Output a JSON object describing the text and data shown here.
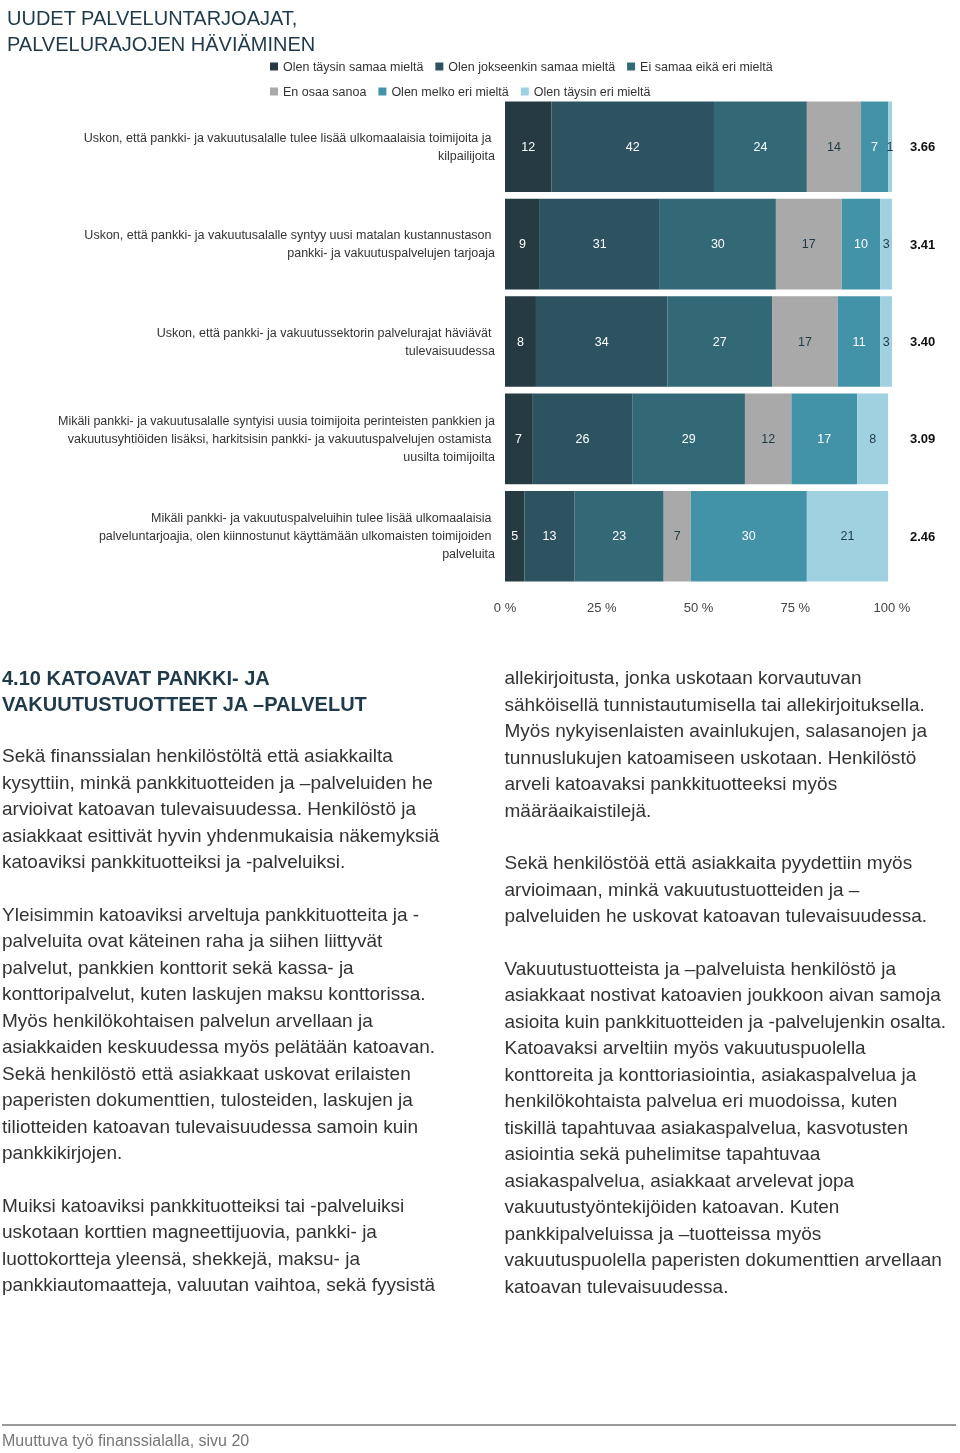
{
  "chart_data": {
    "type": "bar",
    "orientation": "horizontal",
    "stacked": true,
    "title": "UUDET PALVELUNTARJOAJAT, PALVELURAJOJEN HÄVIÄMINEN",
    "categories": [
      "Uskon, että pankki- ja vakuutusalalle tulee lisää ulkomaalaisia toimijoita ja kilpailijoita",
      "Uskon, että pankki- ja vakuutusalalle syntyy uusi matalan kustannustason pankki- ja vakuutuspalvelujen tarjoaja",
      "Uskon, että pankki- ja vakuutussektorin palvelurajat häviävät tulevaisuudessa",
      "Mikäli pankki- ja vakuutusalalle syntyisi uusia toimijoita perinteisten pankkien ja vakuutusyhtiöiden lisäksi, harkitsisin pankki- ja vakuutuspalvelujen ostamista uusilta toimijoilta",
      "Mikäli pankki- ja vakuutuspalveluihin tulee lisää ulkomaalaisia palveluntarjoajia, olen kiinnostunut käyttämään ulkomaisten toimijoiden palveluita"
    ],
    "series": [
      {
        "name": "Olen täysin samaa mieltä",
        "color": "#263a42",
        "values": [
          12,
          9,
          8,
          7,
          5
        ]
      },
      {
        "name": "Olen jokseenkin samaa mieltä",
        "color": "#2d5360",
        "values": [
          42,
          31,
          34,
          26,
          13
        ]
      },
      {
        "name": "Ei samaa eikä eri mieltä",
        "color": "#336877",
        "values": [
          24,
          30,
          27,
          29,
          23
        ]
      },
      {
        "name": "En osaa sanoa",
        "color": "#a9a9a9",
        "values": [
          14,
          17,
          17,
          12,
          7
        ]
      },
      {
        "name": "Olen melko eri mieltä",
        "color": "#4393a8",
        "values": [
          7,
          10,
          11,
          17,
          30
        ]
      },
      {
        "name": "Olen täysin eri mieltä",
        "color": "#9fd1e0",
        "values": [
          1,
          3,
          3,
          8,
          21
        ]
      }
    ],
    "xlim": [
      0,
      100
    ],
    "xticks": [
      {
        "value": 0,
        "label": "0 %"
      },
      {
        "value": 25,
        "label": "25 %"
      },
      {
        "value": 50,
        "label": "50 %"
      },
      {
        "value": 75,
        "label": "75 %"
      },
      {
        "value": 100,
        "label": "100 %"
      }
    ],
    "data_labels": true,
    "grid": false,
    "legend": "top",
    "annotations": [
      "3.66",
      "3.41",
      "3.40",
      "3.09",
      "2.46",
      "4.10 KATOAVAT PANKKI- JA VAKUUTUSTUOTTEET JA –PALVELUT",
      "Sekä finanssialan henkilöstöltä että asiakkailta kysyttiin, minkä pankkituotteiden ja –palveluiden he arvioivat katoavan tulevaisuudessa. Henkilöstö ja asiakkaat esittivät hyvin yhdenmukaisia näkemyksiä katoaviksi pankkituotteiksi ja -palveluiksi.",
      "Yleisimmin katoaviksi arveltuja pankkituotteita ja -palveluita ovat käteinen raha ja siihen liittyvät palvelut, pankkien konttorit sekä kassa- ja konttoripalvelut, kuten laskujen maksu konttorissa. Myös henkilökohtaisen palvelun arvellaan ja asiakkaiden keskuudessa myös pelätään katoavan. Sekä henkilöstö että asiakkaat uskovat erilaisten paperisten dokumenttien, tulosteiden, laskujen ja tiliotteiden katoavan tulevaisuudessa samoin kuin pankkikirjojen.",
      "Muiksi katoaviksi pankkituotteiksi tai -palveluiksi uskotaan korttien magneettijuovia, pankki- ja luottokortteja yleensä, shekkejä, maksu- ja pankkiautomaatteja, valuutan vaihtoa, sekä fyysistä allekirjoitusta, jonka uskotaan korvautuvan sähköisellä tunnistautumisella tai allekirjoituksella. Myös nykyisenlaisten avainlukujen, salasanojen ja tunnuslukujen katoamiseen uskotaan. Henkilöstö arveli katoavaksi pankkituotteeksi myös määräaikaistilejä.",
      "Sekä henkilöstöä että asiakkaita pyydettiin myös arvioimaan, minkä vakuutustuotteiden ja –palveluiden he uskovat katoavan tulevaisuudessa.",
      "Vakuutustuotteista ja –palveluista henkilöstö ja asiakkaat nostivat katoavien joukkoon aivan samoja asioita kuin pankkituotteiden ja -palvelujenkin osalta. Katoavaksi arveltiin myös vakuutuspuolella konttoreita ja konttoriasiointia, asiakaspalvelua ja henkilökohtaista palvelua eri muodoissa, kuten tiskillä tapahtuvaa asiakaspalvelua, kasvotusten asiointia sekä puhelimitse tapahtuvaa asiakaspalvelua, asiakkaat arvelevat jopa vakuutustyöntekijöiden katoavan. Kuten pankkipalveluissa ja –tuotteissa myös vakuutuspuolella paperisten dokumenttien arvellaan katoavan tulevaisuudessa.",
      "Muuttuva työ finanssialalla, sivu 20"
    ]
  }
}
